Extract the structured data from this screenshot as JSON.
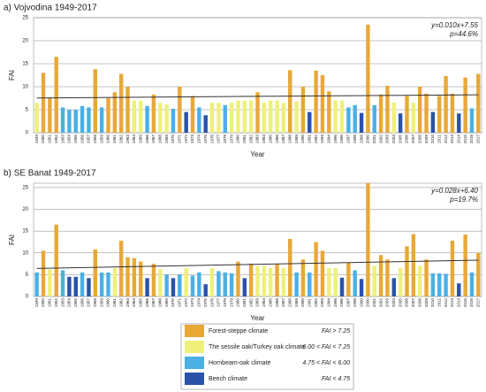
{
  "chart_data": [
    {
      "type": "bar",
      "title": "a)  Vojvodina 1949-2017",
      "x_label": "Year",
      "y_label": "FAI",
      "categories": [
        "1949",
        "1950",
        "1951",
        "1952",
        "1953",
        "1954",
        "1955",
        "1956",
        "1957",
        "1958",
        "1959",
        "1960",
        "1961",
        "1962",
        "1963",
        "1964",
        "1965",
        "1966",
        "1967",
        "1968",
        "1969",
        "1970",
        "1971",
        "1972",
        "1973",
        "1974",
        "1975",
        "1976",
        "1977",
        "1978",
        "1979",
        "1980",
        "1981",
        "1982",
        "1983",
        "1984",
        "1985",
        "1986",
        "1987",
        "1988",
        "1989",
        "1990",
        "1991",
        "1992",
        "1993",
        "1994",
        "1995",
        "1996",
        "1997",
        "1998",
        "1999",
        "2000",
        "2001",
        "2002",
        "2003",
        "2004",
        "2005",
        "2006",
        "2007",
        "2008",
        "2009",
        "2010",
        "2011",
        "2012",
        "2013",
        "2014",
        "2015",
        "2016",
        "2017"
      ],
      "values": [
        6.5,
        13,
        7.5,
        16.5,
        5.5,
        5,
        5,
        5.8,
        5.5,
        13.8,
        5.5,
        7.5,
        8.8,
        12.8,
        10,
        7,
        7,
        5.8,
        8.3,
        6.5,
        6.2,
        5.2,
        10,
        4.5,
        8,
        5.5,
        3.8,
        6.5,
        6.5,
        6,
        6.5,
        7,
        7,
        7,
        8.8,
        6.5,
        7,
        7,
        6.5,
        13.6,
        6.8,
        10,
        4.5,
        13.5,
        12.5,
        9,
        7,
        7,
        5.5,
        6,
        4.3,
        23.5,
        6,
        8.3,
        10.2,
        6.5,
        4.2,
        8,
        6.5,
        10,
        8.5,
        4.5,
        8,
        12.3,
        8.5,
        4.2,
        12,
        5.3,
        12.8
      ],
      "ylim": [
        0,
        25
      ],
      "yticks": [
        0,
        5,
        10,
        15,
        20,
        25
      ],
      "grid": true,
      "trend": {
        "slope": 0.01,
        "intercept": 7.55,
        "label": "y=0.010x+7.55",
        "p_label": "p=44.6%",
        "color": "#333333"
      }
    },
    {
      "type": "bar",
      "title": "b)  SE Banat 1949-2017",
      "x_label": "Year",
      "y_label": "FAI",
      "categories": [
        "1949",
        "1950",
        "1951",
        "1952",
        "1953",
        "1954",
        "1955",
        "1956",
        "1957",
        "1958",
        "1959",
        "1960",
        "1961",
        "1962",
        "1963",
        "1964",
        "1965",
        "1966",
        "1967",
        "1968",
        "1969",
        "1970",
        "1971",
        "1972",
        "1973",
        "1974",
        "1975",
        "1976",
        "1977",
        "1978",
        "1979",
        "1980",
        "1981",
        "1982",
        "1983",
        "1984",
        "1985",
        "1986",
        "1987",
        "1988",
        "1989",
        "1990",
        "1991",
        "1992",
        "1993",
        "1994",
        "1995",
        "1996",
        "1997",
        "1998",
        "1999",
        "2000",
        "2001",
        "2002",
        "2003",
        "2004",
        "2005",
        "2006",
        "2007",
        "2008",
        "2009",
        "2010",
        "2011",
        "2012",
        "2013",
        "2014",
        "2015",
        "2016",
        "2017"
      ],
      "values": [
        5.5,
        10.5,
        6.2,
        16.5,
        6,
        4.5,
        4.5,
        5.5,
        4.2,
        10.8,
        5.5,
        5.5,
        6.5,
        12.8,
        9,
        8.8,
        8,
        4.2,
        7.5,
        6.3,
        5,
        4.2,
        5,
        6.5,
        4.8,
        5.5,
        2.8,
        6.5,
        5.8,
        5.5,
        5.3,
        8,
        4.2,
        7.5,
        7,
        7,
        6.5,
        7.5,
        6.5,
        13.2,
        5.5,
        8.5,
        5.5,
        12.5,
        10.5,
        6.5,
        6.5,
        4.3,
        7.8,
        6,
        4,
        26,
        7,
        9.5,
        8.5,
        4.2,
        6.5,
        11.5,
        14.3,
        7,
        8.5,
        5.3,
        5.3,
        5.2,
        12.8,
        3,
        14.2,
        5.5,
        10
      ],
      "ylim": [
        0,
        26
      ],
      "yticks": [
        0,
        5,
        10,
        15,
        20,
        25
      ],
      "grid": true,
      "trend": {
        "slope": 0.028,
        "intercept": 6.4,
        "label": "y=0.028x+6.40",
        "p_label": "p=19.7%",
        "color": "#333333"
      }
    }
  ],
  "legend": [
    {
      "name": "Forest-steppe climate",
      "range": "FAI > 7.25",
      "min": 7.25,
      "color": "#e8a838"
    },
    {
      "name": "The sessile oak/Turkey oak climate",
      "range": "6.00 < FAI < 7.25",
      "min": 6.0,
      "color": "#eef07a"
    },
    {
      "name": "Hornbeam-oak climate",
      "range": "4.75 < FAI < 6.00",
      "min": 4.75,
      "color": "#4ab0e6"
    },
    {
      "name": "Beech climate",
      "range": "FAI < 4.75",
      "min": -1000000000.0,
      "color": "#2a52a8"
    }
  ]
}
